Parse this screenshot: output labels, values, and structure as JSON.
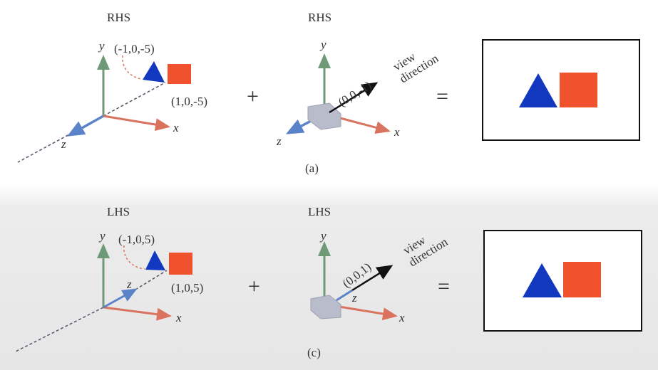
{
  "panel_a": {
    "world_title": "RHS",
    "camera_title": "RHS",
    "point_left": "(-1,0,-5)",
    "point_right": "(1,0,-5)",
    "axis_x": "x",
    "axis_y": "y",
    "axis_z": "z",
    "view_vector": "(0,0,-1)",
    "view_label_1": "view",
    "view_label_2": "direction",
    "plus": "+",
    "equals": "=",
    "caption": "(a)"
  },
  "panel_c": {
    "world_title": "LHS",
    "camera_title": "LHS",
    "point_left": "(-1,0,5)",
    "point_right": "(1,0,5)",
    "axis_x": "x",
    "axis_y": "y",
    "axis_z": "z",
    "view_vector": "(0,0,1)",
    "view_label_1": "view",
    "view_label_2": "direction",
    "plus": "+",
    "equals": "=",
    "caption": "(c)"
  },
  "colors": {
    "triangle": "#1238c0",
    "square": "#f0522e",
    "x_axis": "#d9735f",
    "y_axis": "#6f9a78",
    "z_axis": "#5b84c8",
    "camera": "#b9bccb"
  }
}
